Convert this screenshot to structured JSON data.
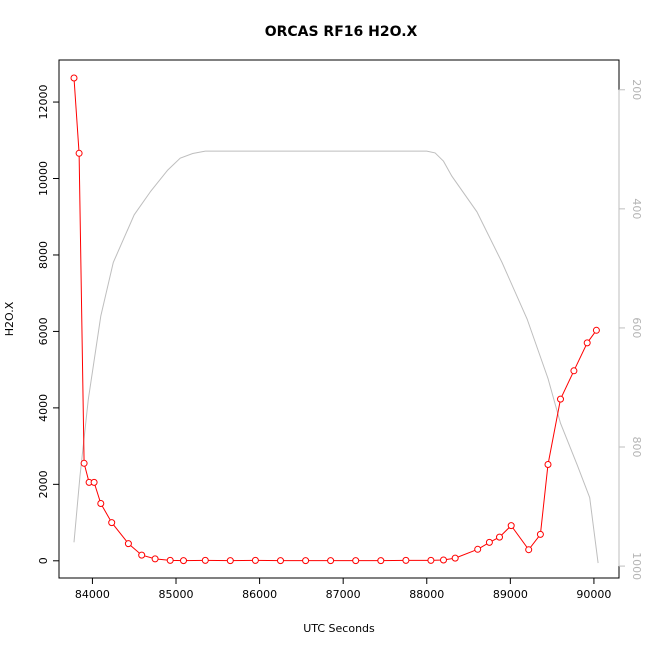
{
  "chart_data": {
    "type": "line",
    "title": "ORCAS RF16 H2O.X",
    "xlabel": "UTC Seconds",
    "ylabel": "H2O.X",
    "xlim": [
      83600,
      90300
    ],
    "ylim": [
      -450,
      13100
    ],
    "x_ticks": [
      84000,
      85000,
      86000,
      87000,
      88000,
      89000,
      90000
    ],
    "y_ticks": [
      0,
      2000,
      4000,
      6000,
      8000,
      10000,
      12000
    ],
    "y2_reversed": true,
    "y2_lim": [
      1020,
      150
    ],
    "y2_ticks": [
      200,
      400,
      600,
      800,
      1000
    ],
    "grid": false,
    "colors": {
      "primary": "#ff0000",
      "secondary": "#bebebe"
    },
    "series": [
      {
        "axis": "left",
        "style": "line-with-circles",
        "x": [
          83780,
          83840,
          83900,
          83960,
          84020,
          84100,
          84230,
          84430,
          84590,
          84750,
          84930,
          85090,
          85350,
          85650,
          85950,
          86250,
          86550,
          86850,
          87150,
          87450,
          87750,
          88050,
          88200,
          88340,
          88610,
          88750,
          88870,
          89010,
          89220,
          89360,
          89450,
          89600,
          89760,
          89920,
          90030
        ],
        "y": [
          12630,
          10660,
          2550,
          2050,
          2050,
          1500,
          1000,
          450,
          150,
          50,
          10,
          5,
          10,
          5,
          10,
          5,
          5,
          5,
          5,
          5,
          10,
          10,
          20,
          70,
          300,
          480,
          620,
          920,
          290,
          690,
          2520,
          4230,
          4970,
          5700,
          6030
        ]
      },
      {
        "axis": "right",
        "style": "line",
        "x": [
          83780,
          83850,
          83950,
          84100,
          84250,
          84500,
          84700,
          84900,
          85050,
          85200,
          85350,
          85600,
          86000,
          86500,
          87000,
          87500,
          88000,
          88100,
          88200,
          88300,
          88600,
          88900,
          89200,
          89450,
          89600,
          89800,
          89950,
          90050
        ],
        "y": [
          960,
          850,
          720,
          580,
          490,
          410,
          370,
          335,
          315,
          307,
          303,
          303,
          303,
          303,
          303,
          303,
          303,
          306,
          320,
          345,
          405,
          490,
          585,
          685,
          760,
          830,
          885,
          995
        ]
      }
    ]
  }
}
